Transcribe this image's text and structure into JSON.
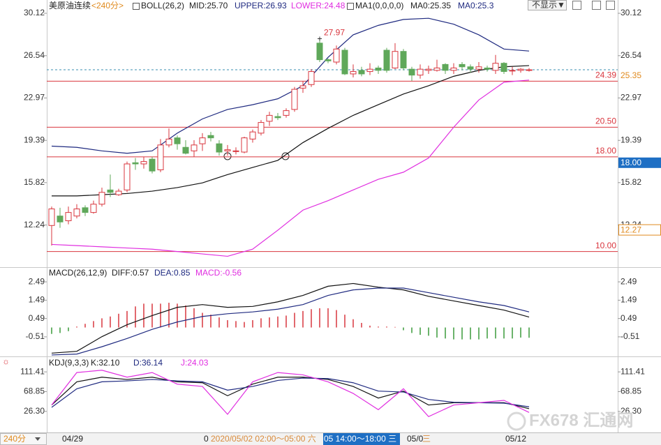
{
  "ui": {
    "header": [
      "美原油连续",
      "<240分>",
      "BOLL(26,2)",
      "MID:25.70",
      "UPPER:26.93",
      "LOWER:24.48",
      "MA1(0,0,0,0)",
      "MA0:25.35",
      "MA0:25.3"
    ],
    "toolbar_button": "不显示▼",
    "macd_header": [
      "MACD(26,12,9)",
      "DIFF:0.57",
      "DEA:0.85",
      "MACD:-0.56"
    ],
    "kdj_header": [
      "KDJ(9,3,3)",
      "K:32.10",
      "D:36.14",
      "J:24.03"
    ],
    "bottom": [
      "240分",
      "04/29",
      "0",
      "2020/05/02 02:00～05:00 六",
      "05 14:00～18:00 三",
      "05/0",
      "三",
      "05/12"
    ],
    "watermark": "FX678 汇通网"
  },
  "chart_data": [
    {
      "type": "candlestick",
      "ylim": [
        8.86,
        30.77
      ],
      "yticks": [
        30.12,
        26.54,
        22.97,
        19.39,
        15.82,
        12.24
      ],
      "up_color": "#d9363e",
      "down_color": "#5fa85a",
      "candles": {
        "open": [
          12.2,
          13.0,
          12.6,
          13.0,
          13.7,
          13.3,
          14.0,
          15.2,
          14.8,
          15.2,
          17.5,
          17.4,
          17.8,
          16.9,
          19.0,
          19.6,
          18.8,
          18.5,
          19.1,
          19.8,
          19.1,
          18.5,
          18.5,
          18.4,
          19.5,
          20.0,
          21.0,
          21.4,
          21.5,
          22.0,
          23.8,
          24.1,
          27.6,
          26.2,
          26.0,
          27.0,
          25.0,
          25.3,
          25.2,
          25.5,
          27.0,
          25.5,
          26.9,
          25.4,
          24.9,
          25.3,
          25.3,
          25.8,
          25.3,
          25.8,
          25.6,
          25.4,
          25.5,
          25.3,
          25.9,
          25.3,
          25.3,
          25.3
        ],
        "close": [
          13.6,
          12.5,
          13.3,
          13.6,
          13.3,
          14.0,
          15.0,
          15.0,
          15.1,
          17.4,
          17.4,
          17.6,
          16.8,
          19.0,
          19.5,
          19.1,
          18.3,
          19.0,
          19.6,
          19.6,
          18.4,
          18.6,
          18.5,
          19.6,
          20.1,
          20.9,
          21.5,
          21.3,
          21.9,
          23.7,
          24.0,
          25.2,
          26.2,
          26.1,
          27.1,
          25.0,
          25.2,
          25.0,
          25.4,
          25.3,
          25.3,
          26.9,
          25.5,
          24.9,
          25.4,
          25.4,
          25.5,
          25.3,
          25.5,
          25.6,
          25.4,
          25.6,
          25.4,
          25.9,
          25.2,
          25.3,
          25.4,
          25.35
        ],
        "high": [
          13.8,
          13.7,
          13.8,
          14.0,
          13.9,
          14.3,
          15.4,
          16.5,
          15.3,
          17.6,
          17.9,
          18.0,
          18.0,
          19.5,
          20.4,
          19.8,
          19.4,
          19.4,
          20.0,
          20.1,
          19.4,
          19.0,
          18.8,
          19.7,
          20.3,
          21.1,
          21.8,
          21.7,
          22.1,
          23.9,
          24.4,
          25.4,
          27.97,
          26.3,
          27.4,
          27.2,
          25.8,
          25.6,
          25.9,
          25.7,
          27.2,
          27.6,
          27.1,
          25.6,
          25.8,
          25.7,
          26.2,
          25.9,
          25.9,
          26.0,
          25.8,
          26.0,
          25.7,
          26.6,
          26.0,
          25.6,
          25.5,
          25.5
        ],
        "low": [
          10.5,
          12.0,
          12.3,
          12.8,
          13.0,
          13.2,
          13.8,
          14.6,
          14.7,
          15.0,
          16.9,
          17.0,
          16.6,
          16.7,
          18.8,
          18.6,
          18.2,
          18.0,
          18.5,
          19.3,
          18.1,
          18.1,
          18.2,
          18.3,
          19.2,
          19.8,
          20.6,
          21.1,
          21.3,
          21.8,
          23.4,
          23.9,
          26.0,
          25.9,
          25.8,
          24.9,
          24.7,
          24.8,
          24.9,
          25.0,
          25.1,
          25.4,
          25.3,
          24.4,
          24.6,
          25.0,
          25.2,
          25.0,
          25.0,
          25.3,
          25.1,
          25.1,
          25.2,
          25.0,
          25.0,
          24.9,
          25.1,
          25.2
        ]
      },
      "series": [
        {
          "color": "#1f2a80",
          "x": [
            0,
            3,
            6,
            9,
            12,
            15,
            18,
            21,
            24,
            27,
            30,
            33,
            36,
            39,
            42,
            45,
            48,
            51,
            54,
            57
          ],
          "values": [
            18.9,
            18.8,
            18.5,
            18.3,
            18.5,
            20.0,
            21.2,
            22.0,
            22.4,
            22.9,
            24.0,
            26.4,
            28.3,
            29.1,
            29.6,
            29.7,
            29.2,
            28.3,
            27.1,
            26.93
          ]
        },
        {
          "color": "#111111",
          "x": [
            0,
            3,
            6,
            9,
            12,
            15,
            18,
            21,
            24,
            27,
            30,
            33,
            36,
            39,
            42,
            45,
            48,
            51,
            54,
            57
          ],
          "values": [
            14.7,
            14.7,
            14.8,
            14.9,
            15.1,
            15.4,
            15.8,
            16.5,
            17.1,
            17.7,
            19.2,
            20.4,
            21.5,
            22.4,
            23.3,
            24.0,
            24.8,
            25.3,
            25.6,
            25.7
          ]
        },
        {
          "color": "#e02ee0",
          "x": [
            0,
            3,
            6,
            9,
            12,
            15,
            18,
            21,
            24,
            27,
            30,
            33,
            36,
            39,
            42,
            45,
            48,
            51,
            54,
            57
          ],
          "values": [
            10.6,
            10.5,
            10.4,
            10.3,
            10.2,
            10.0,
            9.8,
            9.6,
            10.2,
            11.8,
            13.5,
            14.3,
            15.2,
            16.1,
            16.7,
            17.9,
            20.5,
            22.8,
            24.3,
            24.48
          ]
        }
      ],
      "hlines": [
        24.39,
        {
          "value": 20.5,
          "label": "20.50"
        },
        {
          "value": 18,
          "label": "18.00"
        },
        {
          "value": 10,
          "label": "10.00"
        }
      ],
      "hline_color": "#d9363e",
      "last_price": 25.35,
      "cursor_price": {
        "value": 18,
        "label": "18.00"
      },
      "marker_price": 12.27,
      "high_label": 27.97
    },
    {
      "type": "macd",
      "ylim": [
        -1.54,
        2.95
      ],
      "yticks": [
        2.49,
        1.49,
        0.49,
        -0.51
      ],
      "histogram": [
        -0.35,
        -0.3,
        -0.2,
        0.05,
        0.2,
        0.35,
        0.5,
        0.6,
        0.75,
        0.9,
        1.15,
        1.3,
        1.3,
        1.3,
        1.35,
        1.3,
        1.2,
        1.05,
        0.8,
        0.7,
        0.55,
        0.4,
        0.35,
        0.3,
        0.4,
        0.5,
        0.55,
        0.6,
        0.65,
        0.8,
        0.9,
        1.0,
        1.05,
        1.05,
        0.95,
        0.7,
        0.45,
        0.25,
        0.1,
        0.05,
        0.05,
        0.03,
        -0.15,
        -0.3,
        -0.4,
        -0.45,
        -0.55,
        -0.6,
        -0.65,
        -0.65,
        -0.65,
        -0.65,
        -0.6,
        -0.6,
        -0.6,
        -0.6,
        -0.55,
        -0.56
      ],
      "up_color": "#d9363e",
      "down_color": "#3a9a3a",
      "series": [
        {
          "color": "#111111",
          "x": [
            0,
            3,
            6,
            9,
            12,
            15,
            18,
            21,
            24,
            27,
            30,
            33,
            36,
            39,
            42,
            45,
            48,
            51,
            54,
            57
          ],
          "values": [
            -1.4,
            -1.3,
            -0.5,
            0.15,
            0.65,
            1.1,
            1.25,
            1.1,
            1.15,
            1.4,
            1.75,
            2.25,
            2.4,
            2.2,
            2.05,
            1.7,
            1.45,
            1.2,
            0.95,
            0.57
          ]
        },
        {
          "color": "#1f2a80",
          "x": [
            0,
            3,
            6,
            9,
            12,
            15,
            18,
            21,
            24,
            27,
            30,
            33,
            36,
            39,
            42,
            45,
            48,
            51,
            54,
            57
          ],
          "values": [
            -1.5,
            -1.45,
            -1.05,
            -0.6,
            -0.1,
            0.3,
            0.6,
            0.75,
            0.85,
            1.0,
            1.25,
            1.75,
            2.05,
            2.15,
            2.15,
            1.9,
            1.65,
            1.4,
            1.2,
            0.85
          ]
        }
      ]
    },
    {
      "type": "line",
      "ylim": [
        -7.1,
        134.2
      ],
      "yticks": [
        111.41,
        68.85,
        {
          "value": 26.3,
          "label": "26.30"
        }
      ],
      "series": [
        {
          "color": "#111111",
          "x": [
            0,
            3,
            6,
            9,
            12,
            15,
            18,
            21,
            24,
            27,
            30,
            33,
            36,
            39,
            42,
            45,
            48,
            51,
            54,
            57
          ],
          "values": [
            40,
            90,
            100,
            95,
            100,
            90,
            88,
            60,
            85,
            100,
            100,
            95,
            80,
            55,
            70,
            40,
            45,
            45,
            45,
            32.1
          ]
        },
        {
          "color": "#1f2a80",
          "x": [
            0,
            3,
            6,
            9,
            12,
            15,
            18,
            21,
            24,
            27,
            30,
            33,
            36,
            39,
            42,
            45,
            48,
            51,
            54,
            57
          ],
          "values": [
            35,
            75,
            90,
            92,
            95,
            92,
            90,
            72,
            80,
            93,
            98,
            97,
            88,
            70,
            68,
            52,
            46,
            45,
            44,
            36.14
          ]
        },
        {
          "color": "#e02ee0",
          "x": [
            0,
            3,
            6,
            9,
            12,
            15,
            18,
            21,
            24,
            27,
            30,
            33,
            36,
            39,
            42,
            45,
            48,
            51,
            54,
            57
          ],
          "values": [
            40,
            110,
            115,
            100,
            110,
            85,
            80,
            20,
            90,
            110,
            105,
            90,
            65,
            30,
            75,
            15,
            40,
            45,
            50,
            24.03
          ]
        }
      ]
    }
  ]
}
